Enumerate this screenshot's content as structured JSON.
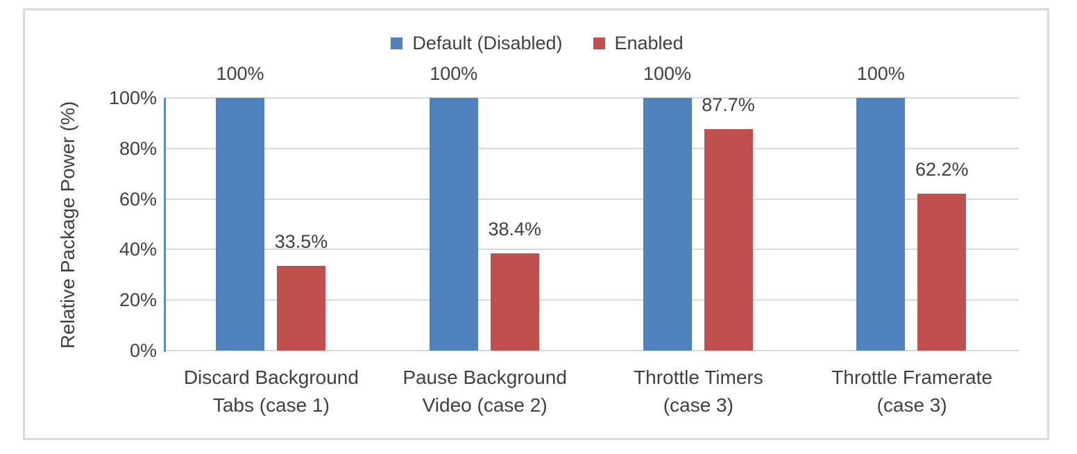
{
  "chart_data": {
    "type": "bar",
    "title": "",
    "categories": [
      "Discard Background\nTabs (case 1)",
      "Pause Background\nVideo (case 2)",
      "Throttle Timers\n(case 3)",
      "Throttle Framerate\n(case 3)"
    ],
    "series": [
      {
        "name": "Default (Disabled)",
        "color": "#4F81BD",
        "values": [
          100,
          100,
          100,
          100
        ],
        "data_labels": [
          "100%",
          "100%",
          "100%",
          "100%"
        ]
      },
      {
        "name": "Enabled",
        "color": "#C0504D",
        "values": [
          33.5,
          38.4,
          87.7,
          62.2
        ],
        "data_labels": [
          "33.5%",
          "38.4%",
          "87.7%",
          "62.2%"
        ]
      }
    ],
    "xlabel": "",
    "ylabel": "Relative Package Power (%)",
    "ytick_values": [
      0,
      20,
      40,
      60,
      80,
      100
    ],
    "ytick_labels": [
      "0%",
      "20%",
      "40%",
      "60%",
      "80%",
      "100%"
    ],
    "ylim": [
      0,
      100
    ],
    "grid": true,
    "legend_position": "top-center",
    "text_color": "#404040",
    "gridline_color": "#D9D9D9",
    "axis_line_color": "#5B8AC6"
  }
}
